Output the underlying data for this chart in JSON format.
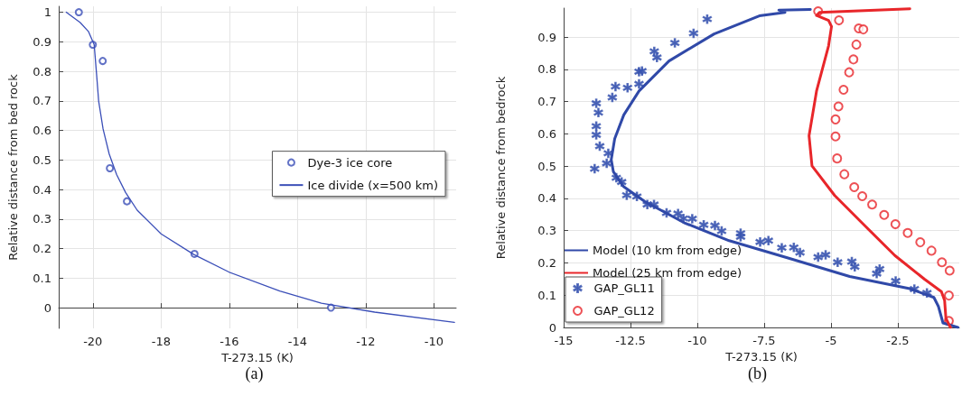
{
  "chart_data": [
    {
      "type": "line",
      "xlabel": "T-273.15 (K)",
      "ylabel": "Relative distance from bed rock",
      "annotations": [
        "(a)"
      ],
      "xlim": [
        -21,
        -9.35
      ],
      "ylim": [
        -0.07,
        1.02
      ],
      "xticks": [
        -20,
        -18,
        -16,
        -14,
        -12,
        -10
      ],
      "yticks": [
        0,
        0.1,
        0.2,
        0.3,
        0.4,
        0.5,
        0.6,
        0.7,
        0.8,
        0.9,
        1
      ],
      "grid": true,
      "legend": "right",
      "series": [
        {
          "name": "Dye-3 ice core",
          "type": "scatter",
          "marker": "circle",
          "color": "#3b4fb8",
          "x": [
            -20.41,
            -20,
            -19.71,
            -19.5,
            -19,
            -17.02,
            -13.02
          ],
          "values": [
            1,
            0.89,
            0.835,
            0.472,
            0.36,
            0.182,
            0
          ]
        },
        {
          "name": "Ice divide (x=500 km)",
          "marker": "none",
          "line_style": "solid",
          "color": "#3b4fb8",
          "x": [
            -20.78,
            -20.37,
            -20.13,
            -19.96,
            -19.89,
            -19.83,
            -19.7,
            -19.52,
            -19.3,
            -19.04,
            -18.7,
            -18,
            -17.04,
            -16,
            -14.52,
            -13.3,
            -11.74,
            -9.4
          ],
          "values": [
            1,
            0.965,
            0.935,
            0.89,
            0.79,
            0.7,
            0.605,
            0.52,
            0.45,
            0.39,
            0.33,
            0.25,
            0.18,
            0.12,
            0.056,
            0.015,
            -0.015,
            -0.05
          ]
        }
      ]
    },
    {
      "type": "line",
      "xlabel": "T-273.15 (K)",
      "ylabel": "Relative distance from bedrock",
      "annotations": [
        "(b)"
      ],
      "xlim": [
        -15,
        -0.2
      ],
      "ylim": [
        0,
        0.99
      ],
      "xticks": [
        -15,
        -12.5,
        -10,
        -7.5,
        -5,
        -2.5
      ],
      "yticks": [
        0,
        0.1,
        0.2,
        0.3,
        0.4,
        0.5,
        0.6,
        0.7,
        0.8,
        0.9
      ],
      "grid": true,
      "legend": "bottom left",
      "series": [
        {
          "name": "Model (10 km from edge)",
          "marker": "none",
          "line_style": "solid",
          "color": "#3049a8",
          "x": [
            -0.25,
            -0.81,
            -0.98,
            -1.15,
            -2.05,
            -4.3,
            -6.55,
            -8.81,
            -10.5,
            -11.96,
            -12.75,
            -13.14,
            -13.22,
            -13.09,
            -12.75,
            -12.18,
            -11.06,
            -9.37,
            -7.68,
            -6.72,
            -6.95,
            -5.77
          ],
          "values": [
            0,
            0.014,
            0.065,
            0.093,
            0.12,
            0.158,
            0.214,
            0.269,
            0.325,
            0.39,
            0.436,
            0.483,
            0.52,
            0.585,
            0.659,
            0.733,
            0.826,
            0.91,
            0.966,
            0.977,
            0.984,
            0.986
          ]
        },
        {
          "name": "Model (25 km from edge)",
          "marker": "none",
          "line_style": "solid",
          "color": "#e8262a",
          "x": [
            -0.53,
            -0.7,
            -0.75,
            -0.87,
            -1.49,
            -2.61,
            -3.74,
            -4.86,
            -5.71,
            -5.82,
            -5.54,
            -5.09,
            -4.98,
            -5.09,
            -5.54,
            -5.43,
            -2.05
          ],
          "values": [
            0,
            0.028,
            0.084,
            0.111,
            0.149,
            0.223,
            0.316,
            0.409,
            0.501,
            0.594,
            0.733,
            0.873,
            0.933,
            0.952,
            0.967,
            0.977,
            0.988
          ]
        },
        {
          "name": "GAP_GL11",
          "type": "scatter",
          "marker": "star",
          "color": "#3a55b0",
          "x": [
            -9.63,
            -10.14,
            -10.84,
            -11.61,
            -11.51,
            -12.18,
            -12.07,
            -13.06,
            -12.61,
            -12.18,
            -13.18,
            -13.78,
            -13.7,
            -13.78,
            -13.78,
            -13.65,
            -13.33,
            -13.39,
            -13.84,
            -13.03,
            -12.83,
            -12.64,
            -12.26,
            -11.87,
            -11.62,
            -11.15,
            -10.72,
            -10.52,
            -10.19,
            -9.76,
            -9.34,
            -9.09,
            -8.38,
            -8.38,
            -7.65,
            -7.34,
            -6.84,
            -6.39,
            -6.16,
            -5.48,
            -5.2,
            -4.75,
            -4.22,
            -4.11,
            -3.29,
            -3.18,
            -2.58,
            -1.88,
            -1.41
          ],
          "values": [
            0.956,
            0.912,
            0.882,
            0.856,
            0.837,
            0.793,
            0.795,
            0.747,
            0.743,
            0.755,
            0.713,
            0.695,
            0.666,
            0.624,
            0.597,
            0.562,
            0.54,
            0.509,
            0.492,
            0.464,
            0.451,
            0.41,
            0.406,
            0.381,
            0.381,
            0.355,
            0.353,
            0.338,
            0.337,
            0.318,
            0.316,
            0.299,
            0.292,
            0.281,
            0.265,
            0.269,
            0.247,
            0.248,
            0.232,
            0.218,
            0.225,
            0.202,
            0.204,
            0.188,
            0.167,
            0.181,
            0.144,
            0.119,
            0.107
          ]
        },
        {
          "name": "GAP_GL12",
          "type": "scatter",
          "marker": "circle",
          "color": "#e8262a",
          "x": [
            -5.48,
            -4.7,
            -3.96,
            -3.79,
            -4.05,
            -4.16,
            -4.32,
            -4.53,
            -4.72,
            -4.83,
            -4.83,
            -4.77,
            -4.5,
            -4.13,
            -3.83,
            -3.46,
            -3.01,
            -2.59,
            -2.13,
            -1.66,
            -1.24,
            -0.85,
            -0.56,
            -0.59,
            -0.59
          ],
          "values": [
            0.98,
            0.952,
            0.927,
            0.924,
            0.877,
            0.831,
            0.791,
            0.737,
            0.685,
            0.645,
            0.592,
            0.524,
            0.475,
            0.435,
            0.407,
            0.381,
            0.349,
            0.32,
            0.293,
            0.264,
            0.238,
            0.202,
            0.176,
            0.099,
            0.02
          ]
        }
      ]
    }
  ]
}
